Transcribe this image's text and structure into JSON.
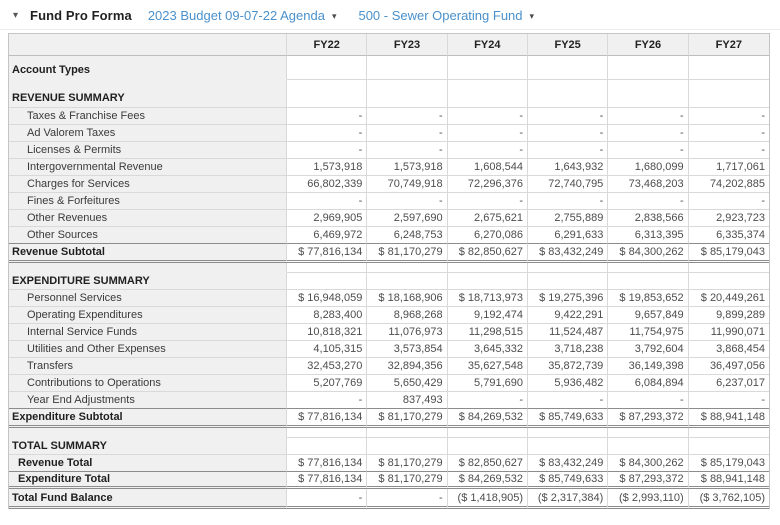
{
  "toolbar": {
    "collapse_icon": "▾",
    "title": "Fund Pro Forma",
    "report_selector": {
      "label": "2023 Budget 09-07-22 Agenda",
      "caret": "▾"
    },
    "fund_selector": {
      "label": "500 - Sewer Operating Fund",
      "caret": "▾"
    }
  },
  "colors": {
    "link_blue": "#4a90cb",
    "header_bg": "#f0f0f0",
    "dark_rule": "#8c8c8c"
  },
  "table": {
    "columns": [
      "FY22",
      "FY23",
      "FY24",
      "FY25",
      "FY26",
      "FY27"
    ],
    "rows": [
      {
        "name": "row-account-types",
        "type": "section-a",
        "label": "Account Types",
        "values": [
          "",
          "",
          "",
          "",
          "",
          ""
        ]
      },
      {
        "name": "row-revenue-summary",
        "type": "section",
        "label": "REVENUE SUMMARY",
        "values": [
          "",
          "",
          "",
          "",
          "",
          ""
        ]
      },
      {
        "name": "row-taxes-franchise-fees",
        "type": "detail",
        "label": "Taxes & Franchise Fees",
        "values": [
          "-",
          "-",
          "-",
          "-",
          "-",
          "-"
        ]
      },
      {
        "name": "row-ad-valorem-taxes",
        "type": "detail",
        "label": "Ad Valorem Taxes",
        "values": [
          "-",
          "-",
          "-",
          "-",
          "-",
          "-"
        ]
      },
      {
        "name": "row-licenses-permits",
        "type": "detail",
        "label": "Licenses & Permits",
        "values": [
          "-",
          "-",
          "-",
          "-",
          "-",
          "-"
        ]
      },
      {
        "name": "row-intergovernmental-revenue",
        "type": "detail",
        "label": "Intergovernmental Revenue",
        "values": [
          "1,573,918",
          "1,573,918",
          "1,608,544",
          "1,643,932",
          "1,680,099",
          "1,717,061"
        ]
      },
      {
        "name": "row-charges-for-services",
        "type": "detail",
        "label": "Charges for Services",
        "values": [
          "66,802,339",
          "70,749,918",
          "72,296,376",
          "72,740,795",
          "73,468,203",
          "74,202,885"
        ]
      },
      {
        "name": "row-fines-forfeitures",
        "type": "detail",
        "label": "Fines & Forfeitures",
        "values": [
          "-",
          "-",
          "-",
          "-",
          "-",
          "-"
        ]
      },
      {
        "name": "row-other-revenues",
        "type": "detail",
        "label": "Other Revenues",
        "values": [
          "2,969,905",
          "2,597,690",
          "2,675,621",
          "2,755,889",
          "2,838,566",
          "2,923,723"
        ]
      },
      {
        "name": "row-other-sources",
        "type": "detail-last",
        "label": "Other Sources",
        "values": [
          "6,469,972",
          "6,248,753",
          "6,270,086",
          "6,291,633",
          "6,313,395",
          "6,335,374"
        ]
      },
      {
        "name": "row-revenue-subtotal",
        "type": "subtotal",
        "label": "Revenue Subtotal",
        "values": [
          "$ 77,816,134",
          "$ 81,170,279",
          "$ 82,850,627",
          "$ 83,432,249",
          "$ 84,300,262",
          "$ 85,179,043"
        ]
      },
      {
        "name": "row-gap-1",
        "type": "gap",
        "label": "",
        "values": [
          "",
          "",
          "",
          "",
          "",
          ""
        ]
      },
      {
        "name": "row-expenditure-summary",
        "type": "section-sm",
        "label": "EXPENDITURE SUMMARY",
        "values": [
          "",
          "",
          "",
          "",
          "",
          ""
        ]
      },
      {
        "name": "row-personnel-services",
        "type": "detail",
        "label": "Personnel Services",
        "values": [
          "$ 16,948,059",
          "$ 18,168,906",
          "$ 18,713,973",
          "$ 19,275,396",
          "$ 19,853,652",
          "$ 20,449,261"
        ]
      },
      {
        "name": "row-operating-expenditures",
        "type": "detail",
        "label": "Operating Expenditures",
        "values": [
          "8,283,400",
          "8,968,268",
          "9,192,474",
          "9,422,291",
          "9,657,849",
          "9,899,289"
        ]
      },
      {
        "name": "row-internal-service-funds",
        "type": "detail",
        "label": "Internal Service Funds",
        "values": [
          "10,818,321",
          "11,076,973",
          "11,298,515",
          "11,524,487",
          "11,754,975",
          "11,990,071"
        ]
      },
      {
        "name": "row-utilities-other-expenses",
        "type": "detail",
        "label": "Utilities and Other Expenses",
        "values": [
          "4,105,315",
          "3,573,854",
          "3,645,332",
          "3,718,238",
          "3,792,604",
          "3,868,454"
        ]
      },
      {
        "name": "row-transfers",
        "type": "detail",
        "label": "Transfers",
        "values": [
          "32,453,270",
          "32,894,356",
          "35,627,548",
          "35,872,739",
          "36,149,398",
          "36,497,056"
        ]
      },
      {
        "name": "row-contributions-to-operations",
        "type": "detail",
        "label": "Contributions to Operations",
        "values": [
          "5,207,769",
          "5,650,429",
          "5,791,690",
          "5,936,482",
          "6,084,894",
          "6,237,017"
        ]
      },
      {
        "name": "row-year-end-adjustments",
        "type": "detail-last",
        "label": "Year End Adjustments",
        "values": [
          "-",
          "837,493",
          "-",
          "-",
          "-",
          "-"
        ]
      },
      {
        "name": "row-expenditure-subtotal",
        "type": "subtotal",
        "label": "Expenditure Subtotal",
        "values": [
          "$ 77,816,134",
          "$ 81,170,279",
          "$ 84,269,532",
          "$ 85,749,633",
          "$ 87,293,372",
          "$ 88,941,148"
        ]
      },
      {
        "name": "row-gap-2",
        "type": "gap",
        "label": "",
        "values": [
          "",
          "",
          "",
          "",
          "",
          ""
        ]
      },
      {
        "name": "row-total-summary",
        "type": "section-sm",
        "label": "TOTAL SUMMARY",
        "values": [
          "",
          "",
          "",
          "",
          "",
          ""
        ]
      },
      {
        "name": "row-revenue-total",
        "type": "total1",
        "label": "Revenue Total",
        "values": [
          "$ 77,816,134",
          "$ 81,170,279",
          "$ 82,850,627",
          "$ 83,432,249",
          "$ 84,300,262",
          "$ 85,179,043"
        ]
      },
      {
        "name": "row-expenditure-total",
        "type": "total2",
        "label": "Expenditure Total",
        "values": [
          "$ 77,816,134",
          "$ 81,170,279",
          "$ 84,269,532",
          "$ 85,749,633",
          "$ 87,293,372",
          "$ 88,941,148"
        ]
      },
      {
        "name": "row-total-fund-balance",
        "type": "grand",
        "label": "Total Fund Balance",
        "values": [
          "-",
          "-",
          "($ 1,418,905)",
          "($ 2,317,384)",
          "($ 2,993,110)",
          "($ 3,762,105)"
        ]
      }
    ]
  }
}
